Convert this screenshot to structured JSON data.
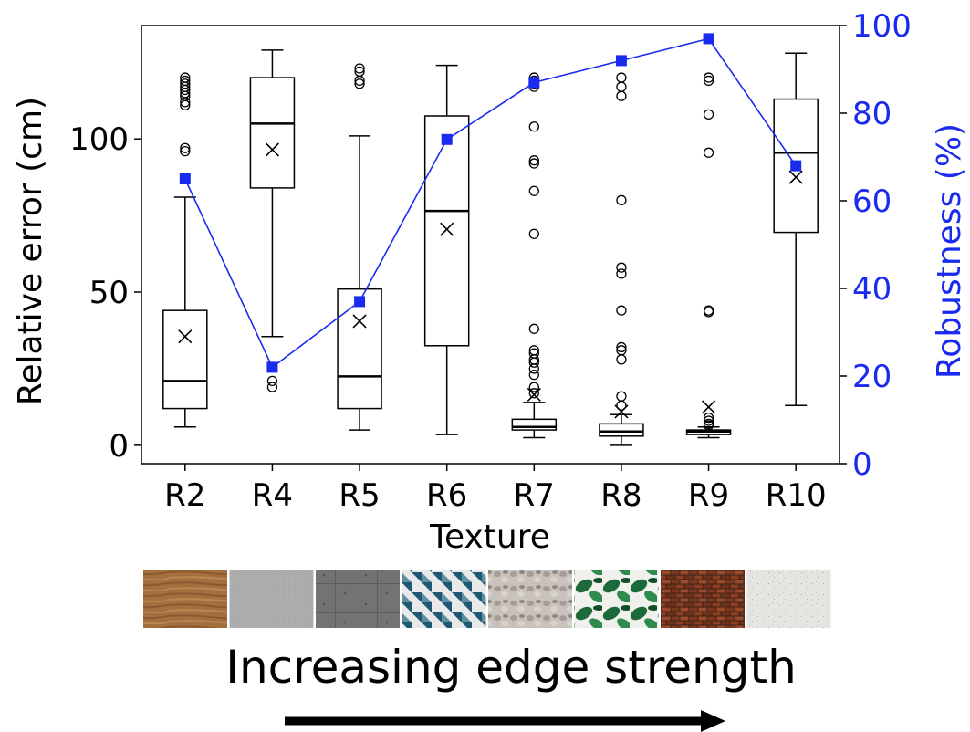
{
  "chart_data": {
    "type": "box",
    "xlabel": "Texture",
    "ylabel": "Relative error (cm)",
    "ylabel_right": "Robustness (%)",
    "categories": [
      "R2",
      "R4",
      "R5",
      "R6",
      "R7",
      "R8",
      "R9",
      "R10"
    ],
    "ylim": [
      -6,
      137
    ],
    "ylim_right": [
      0,
      100
    ],
    "yticks": [
      "0",
      "50",
      "100"
    ],
    "yticks_right": [
      "0",
      "20",
      "40",
      "60",
      "80",
      "100"
    ],
    "boxes": [
      {
        "name": "R2",
        "whisker_low": 6,
        "q1": 12,
        "median": 21,
        "q3": 44,
        "whisker_high": 81,
        "mean": 35.5,
        "outliers": [
          96,
          97,
          111,
          112,
          114,
          115,
          116,
          117,
          118,
          119,
          120
        ]
      },
      {
        "name": "R4",
        "whisker_low": 35.5,
        "q1": 84,
        "median": 105,
        "q3": 120,
        "whisker_high": 129,
        "mean": 96.5,
        "outliers": [
          19,
          21
        ]
      },
      {
        "name": "R5",
        "whisker_low": 5,
        "q1": 12,
        "median": 22.5,
        "q3": 51,
        "whisker_high": 101,
        "mean": 40.5,
        "outliers": [
          118,
          119,
          122,
          123
        ]
      },
      {
        "name": "R6",
        "whisker_low": 3.5,
        "q1": 32.5,
        "median": 76.5,
        "q3": 107.5,
        "whisker_high": 124,
        "mean": 70.5,
        "outliers": []
      },
      {
        "name": "R7",
        "whisker_low": 2.5,
        "q1": 5,
        "median": 6,
        "q3": 8.5,
        "whisker_high": 14,
        "mean": 16.5,
        "outliers": [
          17,
          19,
          23,
          25,
          27,
          28,
          30,
          31,
          38,
          69,
          83,
          92,
          93,
          104,
          117,
          118,
          119,
          120
        ]
      },
      {
        "name": "R8",
        "whisker_low": 0,
        "q1": 3,
        "median": 4.5,
        "q3": 7,
        "whisker_high": 10,
        "mean": 11,
        "outliers": [
          13,
          16,
          28,
          31,
          32,
          44,
          56,
          58,
          80,
          114,
          117,
          120
        ]
      },
      {
        "name": "R9",
        "whisker_low": 2.5,
        "q1": 3.5,
        "median": 4.5,
        "q3": 5,
        "whisker_high": 6,
        "mean": 12.5,
        "outliers": [
          6.5,
          7,
          8,
          9,
          43.5,
          44,
          95.5,
          108,
          119,
          120
        ]
      },
      {
        "name": "R10",
        "whisker_low": 13,
        "q1": 69.5,
        "median": 95.5,
        "q3": 113,
        "whisker_high": 128,
        "mean": 87.5,
        "outliers": []
      }
    ],
    "robustness": {
      "values": [
        65,
        22,
        37,
        74,
        87,
        92,
        97,
        68
      ],
      "color": "#1a2bf0"
    },
    "colors": {
      "box": "#000000",
      "robustness": "#1a2bf0"
    }
  },
  "textures": {
    "swatches": [
      {
        "name": "wood",
        "c1": "#9a6a3c",
        "c2": "#b5834d"
      },
      {
        "name": "plain-gray",
        "c1": "#a8a8a8",
        "c2": "#b3b3b3"
      },
      {
        "name": "concrete-gray",
        "c1": "#6f6f6f",
        "c2": "#7b7b7b"
      },
      {
        "name": "geometric-teal",
        "c1": "#1f5872",
        "c2": "#e8e8e8"
      },
      {
        "name": "pebbles",
        "c1": "#b0a8a2",
        "c2": "#d6d0cb"
      },
      {
        "name": "monstera-leaves",
        "c1": "#1e6a3c",
        "c2": "#f2f2f2"
      },
      {
        "name": "brick",
        "c1": "#7a3a22",
        "c2": "#5a2a1a"
      },
      {
        "name": "terrazzo-white",
        "c1": "#e3e4e0",
        "c2": "#cfd2cc"
      }
    ],
    "caption": "Increasing edge strength"
  }
}
